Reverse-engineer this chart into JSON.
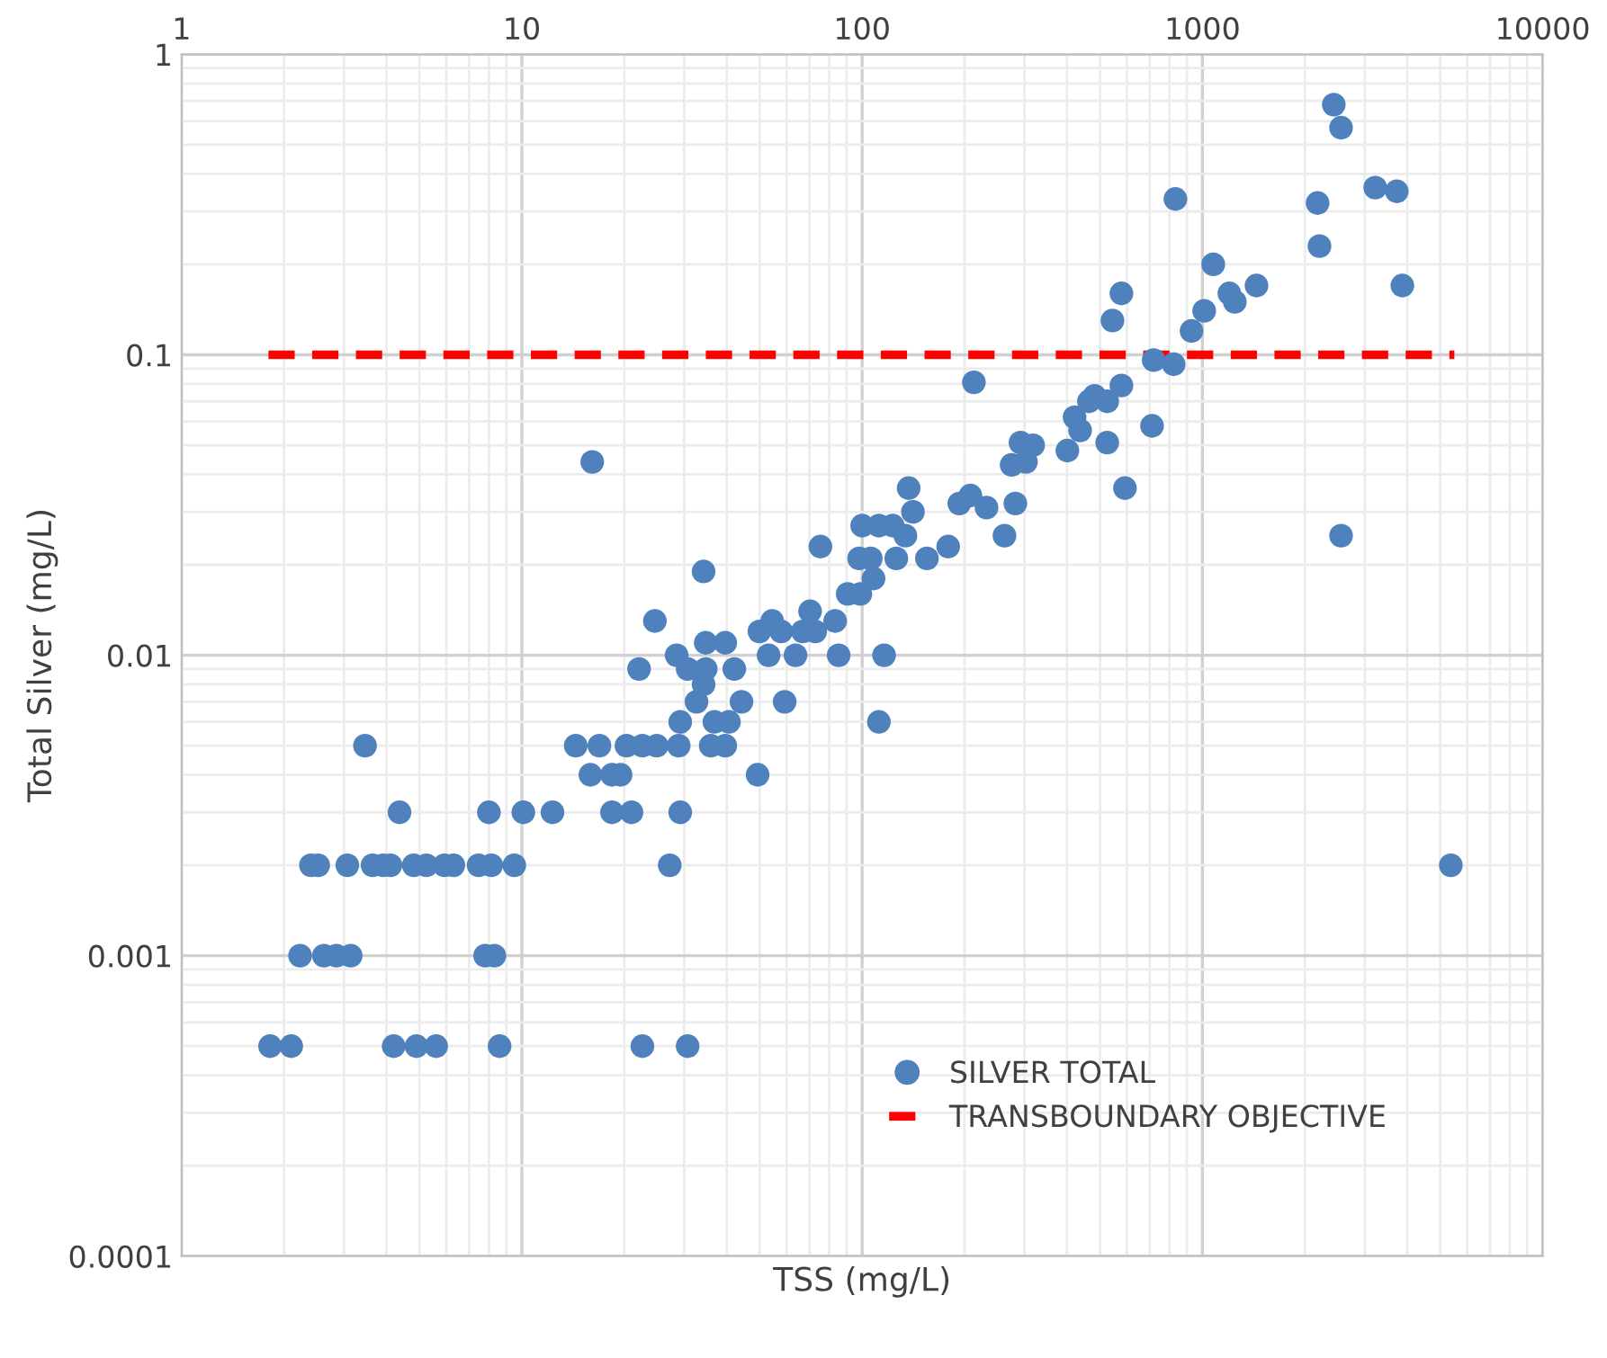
{
  "chart_data": {
    "type": "scatter",
    "xlabel": "TSS (mg/L)",
    "ylabel": "Total Silver (mg/L)",
    "log": "xy",
    "xlim": [
      1,
      10000
    ],
    "xticks": [
      1,
      10,
      100,
      1000,
      10000
    ],
    "ylim": [
      0.0001,
      1
    ],
    "yticks": [
      0.0001,
      0.001,
      0.01,
      0.1,
      1
    ],
    "grid": true,
    "legend": "bottom right",
    "series": [
      {
        "name": "SILVER TOTAL",
        "type": "scatter",
        "marker": "circle",
        "color": "#4f81bd",
        "x": [
          1.82,
          2.1,
          4.2,
          4.9,
          5.6,
          8.6,
          22.6,
          30.7,
          2.23,
          2.62,
          2.85,
          3.14,
          7.8,
          8.3,
          2.4,
          2.52,
          3.07,
          3.64,
          3.91,
          4.11,
          4.81,
          5.24,
          5.92,
          6.29,
          7.46,
          8.13,
          9.5,
          27.2,
          5370,
          4.37,
          8.0,
          10.1,
          12.3,
          18.4,
          21.0,
          29.2,
          3.46,
          14.4,
          16.9,
          20.3,
          22.6,
          24.9,
          28.9,
          35.9,
          39.6,
          15.9,
          18.4,
          19.5,
          49.3,
          29.2,
          36.8,
          40.6,
          112,
          32.6,
          44.2,
          59.2,
          34.2,
          22.1,
          30.7,
          34.7,
          42.1,
          28.5,
          53.1,
          63.7,
          85.3,
          116,
          34.7,
          39.6,
          49.9,
          57.8,
          66.9,
          72.8,
          24.6,
          54.4,
          83.3,
          70.3,
          90.7,
          98.8,
          108,
          34.2,
          98,
          106,
          126,
          155,
          75.4,
          179,
          100,
          112,
          123,
          134,
          141,
          16.1,
          2432,
          2555,
          833,
          2180,
          3220,
          3725,
          2208,
          1076,
          3868,
          1442,
          1200,
          1245,
          578,
          544,
          1012,
          929,
          719,
          823,
          213,
          578,
          482,
          525,
          464,
          421,
          437,
          711,
          525,
          592,
          292,
          318,
          275,
          303,
          401,
          2555,
          282,
          262,
          193,
          208,
          232,
          137
        ],
        "values": [
          0.0005,
          0.0005,
          0.0005,
          0.0005,
          0.0005,
          0.0005,
          0.0005,
          0.0005,
          0.001,
          0.001,
          0.001,
          0.001,
          0.001,
          0.001,
          0.002,
          0.002,
          0.002,
          0.002,
          0.002,
          0.002,
          0.002,
          0.002,
          0.002,
          0.002,
          0.002,
          0.002,
          0.002,
          0.002,
          0.002,
          0.003,
          0.003,
          0.003,
          0.003,
          0.003,
          0.003,
          0.003,
          0.005,
          0.005,
          0.005,
          0.005,
          0.005,
          0.005,
          0.005,
          0.005,
          0.005,
          0.004,
          0.004,
          0.004,
          0.004,
          0.006,
          0.006,
          0.006,
          0.006,
          0.007,
          0.007,
          0.007,
          0.008,
          0.009,
          0.009,
          0.009,
          0.009,
          0.01,
          0.01,
          0.01,
          0.01,
          0.01,
          0.011,
          0.011,
          0.012,
          0.012,
          0.012,
          0.012,
          0.013,
          0.013,
          0.013,
          0.014,
          0.016,
          0.016,
          0.018,
          0.019,
          0.021,
          0.021,
          0.021,
          0.021,
          0.023,
          0.023,
          0.027,
          0.027,
          0.027,
          0.025,
          0.03,
          0.044,
          0.68,
          0.57,
          0.33,
          0.32,
          0.36,
          0.35,
          0.23,
          0.2,
          0.17,
          0.17,
          0.16,
          0.15,
          0.16,
          0.13,
          0.14,
          0.12,
          0.096,
          0.093,
          0.081,
          0.079,
          0.073,
          0.07,
          0.07,
          0.062,
          0.056,
          0.058,
          0.051,
          0.036,
          0.051,
          0.05,
          0.043,
          0.044,
          0.048,
          0.025,
          0.032,
          0.025,
          0.032,
          0.034,
          0.031,
          0.036
        ]
      },
      {
        "name": "TRANSBOUNDARY OBJECTIVE",
        "type": "line",
        "line_style": "dashed",
        "marker": "none",
        "color": "#ff0000",
        "x": [
          1.8,
          5500
        ],
        "values": [
          0.1,
          0.1
        ]
      }
    ]
  }
}
